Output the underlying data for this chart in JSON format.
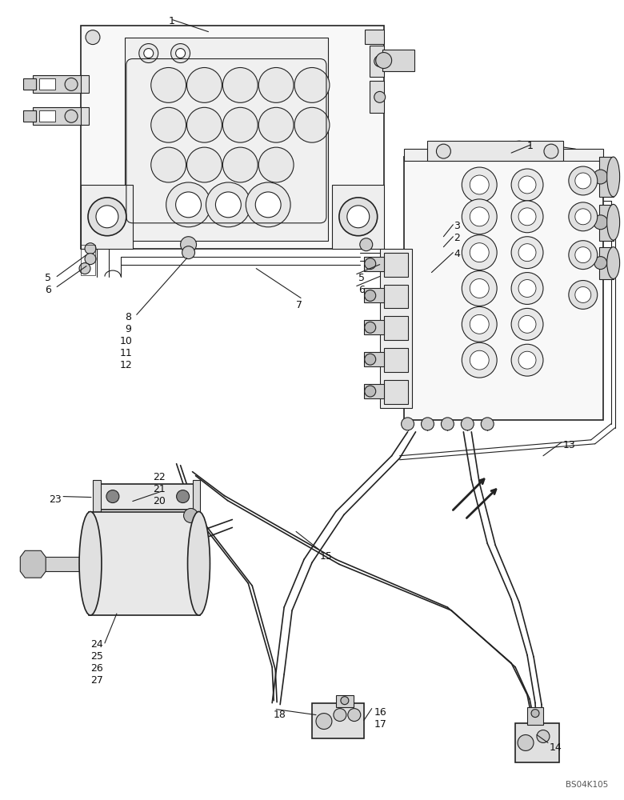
{
  "background_color": "#ffffff",
  "line_color": "#222222",
  "text_color": "#111111",
  "figsize": [
    7.8,
    10.0
  ],
  "dpi": 100,
  "watermark": "BS04K105",
  "font_size": 9
}
